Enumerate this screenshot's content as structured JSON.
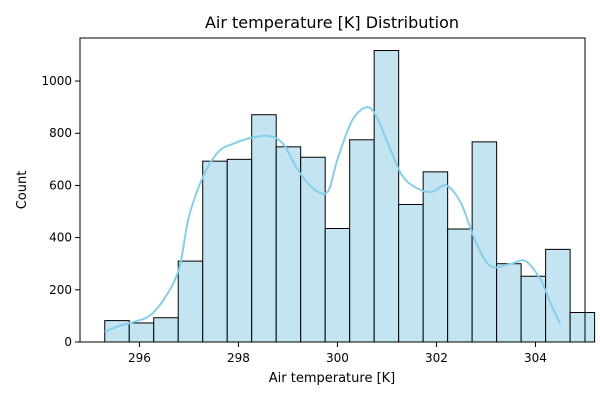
{
  "chart_data": {
    "type": "bar",
    "title": "Air temperature [K] Distribution",
    "xlabel": "Air temperature [K]",
    "ylabel": "Count",
    "xlim": [
      294.8,
      305.0
    ],
    "ylim": [
      0,
      1165
    ],
    "xticks": [
      296,
      298,
      300,
      302,
      304
    ],
    "yticks": [
      0,
      200,
      400,
      600,
      800,
      1000
    ],
    "grid": false,
    "colors": {
      "bar_fill": "#c4e4f2",
      "bar_edge": "#000000",
      "kde_line": "#87ceeb"
    },
    "bins": {
      "start": 295.3,
      "width": 0.4947,
      "counts": [
        82,
        73,
        93,
        310,
        693,
        700,
        871,
        748,
        708,
        435,
        775,
        1117,
        527,
        652,
        433,
        767,
        300,
        252,
        355,
        113
      ]
    },
    "kde": {
      "x": [
        295.3,
        295.6,
        295.9,
        296.2,
        296.5,
        296.8,
        297.0,
        297.3,
        297.6,
        297.9,
        298.2,
        298.6,
        298.9,
        299.2,
        299.5,
        299.8,
        300.0,
        300.3,
        300.6,
        300.8,
        301.0,
        301.3,
        301.6,
        301.9,
        302.2,
        302.5,
        302.8,
        303.1,
        303.5,
        303.8,
        304.1,
        304.3,
        304.5
      ],
      "y": [
        40,
        62,
        78,
        100,
        165,
        280,
        480,
        640,
        730,
        760,
        780,
        790,
        760,
        660,
        590,
        575,
        700,
        850,
        900,
        860,
        770,
        640,
        590,
        575,
        600,
        530,
        380,
        290,
        300,
        310,
        240,
        150,
        70
      ]
    }
  }
}
